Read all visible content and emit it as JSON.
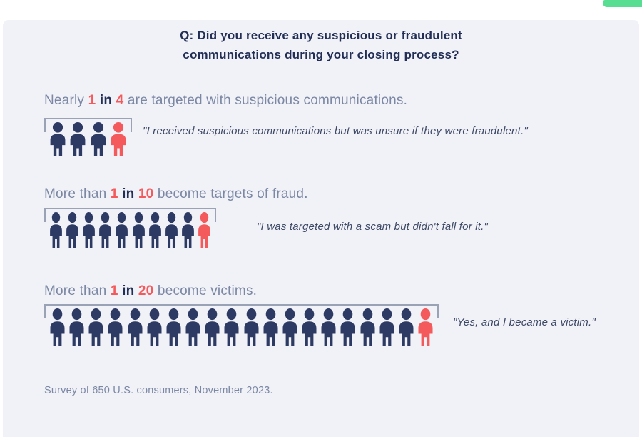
{
  "accent_tab": {
    "color": "#58DE93"
  },
  "title": {
    "line1": "Q: Did you receive any suspicious or fraudulent",
    "line2": "communications during your closing process?"
  },
  "colors": {
    "navy": "#2D3A63",
    "red": "#F45A5C",
    "gray_text": "#7B87A3",
    "dark_navy_text": "#222E55",
    "quote_text": "#3E4965",
    "bracket": "#9AA2B5",
    "panel_bg": "#F1F2F8",
    "green": "#58DE93"
  },
  "chart_data": {
    "type": "pictogram",
    "title": "Q: Did you receive any suspicious or fraudulent communications during your closing process?",
    "series": [
      {
        "prefix": "Nearly",
        "num": "1",
        "conj": "in",
        "den": "4",
        "suffix": "are targeted with suspicious communications.",
        "icons_total": 4,
        "icons_highlighted": 1,
        "quote": "\"I received suspicious communications but was unsure if they were fraudulent.\""
      },
      {
        "prefix": "More than",
        "num": "1",
        "conj": "in",
        "den": "10",
        "suffix": "become targets of fraud.",
        "icons_total": 10,
        "icons_highlighted": 1,
        "quote": "\"I was targeted with a scam but didn't fall for it.\""
      },
      {
        "prefix": "More than",
        "num": "1",
        "conj": "in",
        "den": "20",
        "suffix": "become victims.",
        "icons_total": 20,
        "icons_highlighted": 1,
        "quote": "\"Yes, and I became a victim.\""
      }
    ],
    "footnote": "Survey of 650 U.S. consumers, November 2023."
  }
}
